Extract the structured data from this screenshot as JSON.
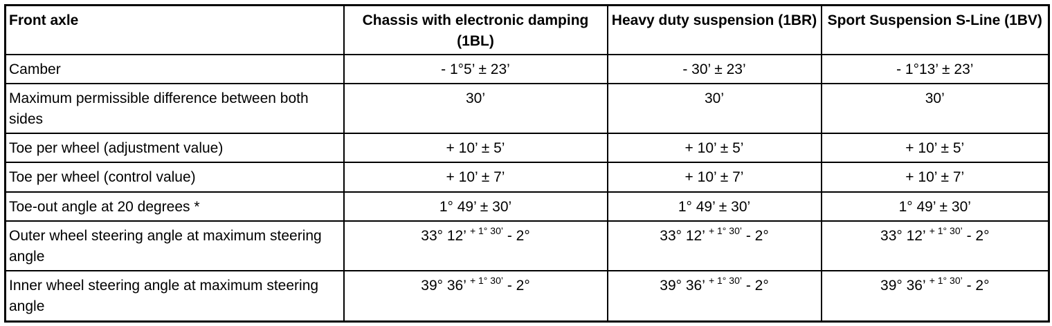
{
  "table": {
    "header": [
      "Front axle",
      "Chassis with electronic damping (1BL)",
      "Heavy duty suspension (1BR)",
      "Sport Suspension S-Line (1BV)"
    ],
    "rows": [
      {
        "label": "Camber",
        "values": [
          "- 1°5’ ± 23’",
          "- 30’ ± 23’",
          "- 1°13’ ± 23’"
        ]
      },
      {
        "label": "Maximum permissible difference between both sides",
        "values": [
          "30’",
          "30’",
          "30’"
        ]
      },
      {
        "label": "Toe per wheel (adjustment value)",
        "values": [
          "+ 10’ ± 5’",
          "+ 10’ ± 5’",
          "+ 10’ ± 5’"
        ]
      },
      {
        "label": "Toe per wheel (control value)",
        "values": [
          "+ 10’ ± 7’",
          "+ 10’ ± 7’",
          "+ 10’ ± 7’"
        ]
      },
      {
        "label": "Toe-out angle at 20 degrees *",
        "values": [
          "1° 49’ ± 30’",
          "1° 49’ ± 30’",
          "1° 49’ ± 30’"
        ]
      },
      {
        "label": "Outer wheel steering angle at maximum steering angle",
        "values": [
          {
            "main": "33° 12’",
            "sup": "+ 1° 30’",
            "rest": "- 2°"
          },
          {
            "main": "33° 12’",
            "sup": "+ 1° 30’",
            "rest": "- 2°"
          },
          {
            "main": "33° 12’",
            "sup": "+ 1° 30’",
            "rest": "- 2°"
          }
        ]
      },
      {
        "label": "Inner wheel steering angle at maximum steering angle",
        "values": [
          {
            "main": "39° 36’",
            "sup": "+ 1° 30’",
            "rest": "- 2°"
          },
          {
            "main": "39° 36’",
            "sup": "+ 1° 30’",
            "rest": "- 2°"
          },
          {
            "main": "39° 36’",
            "sup": "+ 1° 30’",
            "rest": "- 2°"
          }
        ]
      }
    ]
  }
}
